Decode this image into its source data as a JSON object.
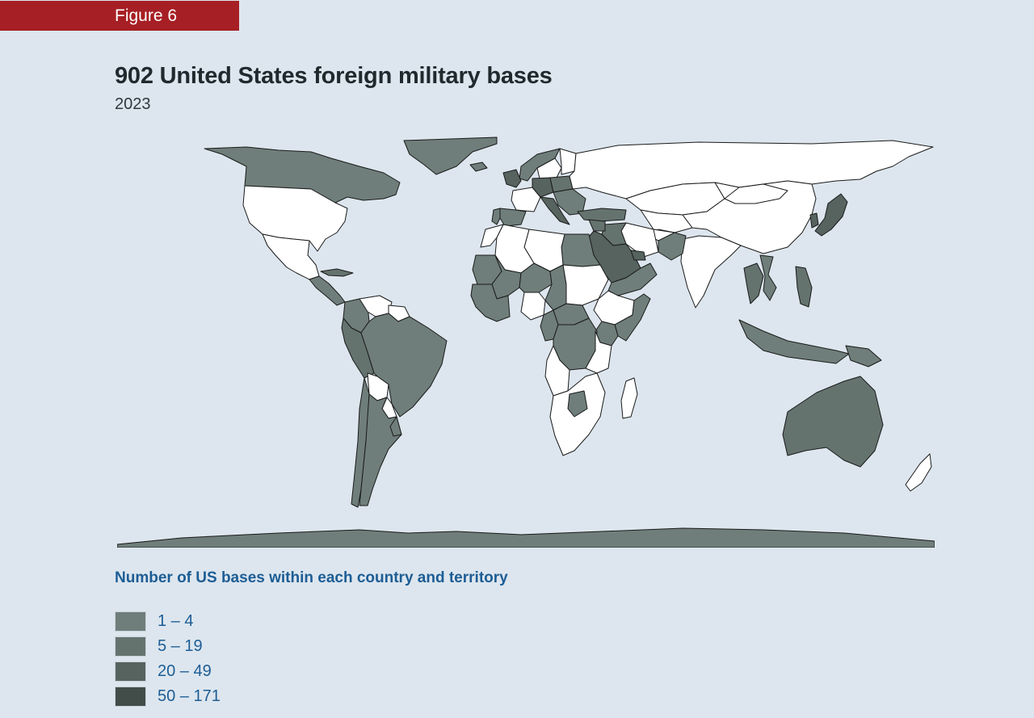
{
  "figure_label": "Figure 6",
  "title": "902 United States foreign military bases",
  "subtitle": "2023",
  "legend": {
    "title": "Number of US bases within each country and territory",
    "items": [
      {
        "label": "1 – 4",
        "color": "#6f7e7a"
      },
      {
        "label": "5 – 19",
        "color": "#65736f"
      },
      {
        "label": "20 – 49",
        "color": "#56635f"
      },
      {
        "label": "50 – 171",
        "color": "#424c49"
      }
    ]
  },
  "map": {
    "ocean_color": "#dde6ee",
    "no_bases_color": "#ffffff",
    "regions": [
      {
        "name": "Greenland",
        "bin": 1
      },
      {
        "name": "Canada",
        "bin": 1
      },
      {
        "name": "United States",
        "bin": 0
      },
      {
        "name": "Mexico",
        "bin": 0
      },
      {
        "name": "Central America",
        "bin": 1
      },
      {
        "name": "Cuba",
        "bin": 2
      },
      {
        "name": "Colombia",
        "bin": 1
      },
      {
        "name": "Venezuela",
        "bin": 0
      },
      {
        "name": "Guianas",
        "bin": 0
      },
      {
        "name": "Peru",
        "bin": 2
      },
      {
        "name": "Brazil",
        "bin": 1
      },
      {
        "name": "Bolivia",
        "bin": 0
      },
      {
        "name": "Paraguay",
        "bin": 0
      },
      {
        "name": "Chile",
        "bin": 1
      },
      {
        "name": "Argentina",
        "bin": 1
      },
      {
        "name": "Uruguay",
        "bin": 1
      },
      {
        "name": "Iceland",
        "bin": 1
      },
      {
        "name": "Norway",
        "bin": 1
      },
      {
        "name": "Sweden",
        "bin": 0
      },
      {
        "name": "Finland",
        "bin": 0
      },
      {
        "name": "United Kingdom",
        "bin": 3
      },
      {
        "name": "France",
        "bin": 0
      },
      {
        "name": "Germany",
        "bin": 3
      },
      {
        "name": "Poland",
        "bin": 2
      },
      {
        "name": "Italy",
        "bin": 3
      },
      {
        "name": "Spain",
        "bin": 1
      },
      {
        "name": "Portugal",
        "bin": 1
      },
      {
        "name": "Balkans",
        "bin": 1
      },
      {
        "name": "Turkey",
        "bin": 2
      },
      {
        "name": "Russia",
        "bin": 0
      },
      {
        "name": "Kazakhstan",
        "bin": 0
      },
      {
        "name": "Central Asia",
        "bin": 0
      },
      {
        "name": "China",
        "bin": 0
      },
      {
        "name": "Mongolia",
        "bin": 0
      },
      {
        "name": "India",
        "bin": 0
      },
      {
        "name": "Pakistan",
        "bin": 1
      },
      {
        "name": "Afghanistan",
        "bin": 0
      },
      {
        "name": "Iran",
        "bin": 0
      },
      {
        "name": "Iraq",
        "bin": 2
      },
      {
        "name": "Syria",
        "bin": 2
      },
      {
        "name": "Saudi Arabia",
        "bin": 3
      },
      {
        "name": "Oman and Yemen",
        "bin": 1
      },
      {
        "name": "Gulf States",
        "bin": 3
      },
      {
        "name": "Egypt",
        "bin": 1
      },
      {
        "name": "Libya",
        "bin": 0
      },
      {
        "name": "Algeria",
        "bin": 0
      },
      {
        "name": "Morocco",
        "bin": 0
      },
      {
        "name": "Mauritania",
        "bin": 1
      },
      {
        "name": "Mali",
        "bin": 1
      },
      {
        "name": "Niger",
        "bin": 1
      },
      {
        "name": "Chad",
        "bin": 1
      },
      {
        "name": "Sudan",
        "bin": 0
      },
      {
        "name": "Ethiopia",
        "bin": 0
      },
      {
        "name": "Somalia",
        "bin": 1
      },
      {
        "name": "Kenya",
        "bin": 1
      },
      {
        "name": "West Africa Coast",
        "bin": 1
      },
      {
        "name": "Nigeria",
        "bin": 0
      },
      {
        "name": "Cameroon",
        "bin": 1
      },
      {
        "name": "Central Africa",
        "bin": 1
      },
      {
        "name": "DR Congo",
        "bin": 1
      },
      {
        "name": "Tanzania",
        "bin": 0
      },
      {
        "name": "Angola",
        "bin": 0
      },
      {
        "name": "Southern Africa",
        "bin": 0
      },
      {
        "name": "Botswana",
        "bin": 1
      },
      {
        "name": "Madagascar",
        "bin": 0
      },
      {
        "name": "Japan",
        "bin": 3
      },
      {
        "name": "South Korea",
        "bin": 3
      },
      {
        "name": "Thailand",
        "bin": 2
      },
      {
        "name": "Vietnam",
        "bin": 1
      },
      {
        "name": "Philippines",
        "bin": 2
      },
      {
        "name": "Indonesia",
        "bin": 1
      },
      {
        "name": "Papua New Guinea",
        "bin": 1
      },
      {
        "name": "Australia",
        "bin": 2
      },
      {
        "name": "New Zealand",
        "bin": 0
      },
      {
        "name": "Antarctica",
        "bin": 1
      }
    ]
  }
}
